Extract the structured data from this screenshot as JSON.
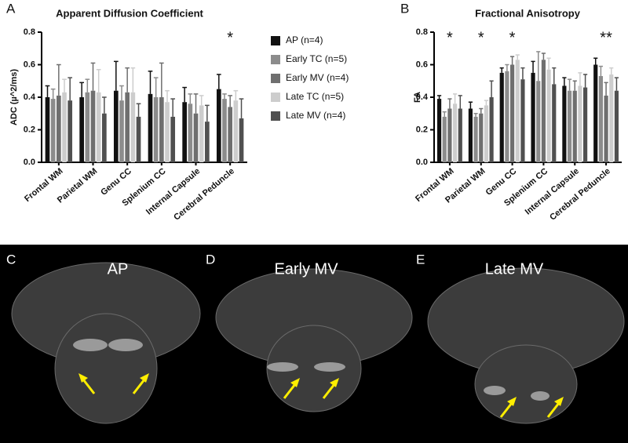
{
  "chart_data": [
    {
      "type": "bar",
      "panel": "A",
      "title": "Apparent Diffusion Coefficient",
      "ylabel": "ADC (µ^2/ms)",
      "categories": [
        "Frontal WM",
        "Parietal WM",
        "Genu CC",
        "Splenium CC",
        "Internal Capsule",
        "Cerebral Peduncle"
      ],
      "series": [
        {
          "name": "AP (n=4)",
          "color": "#111111",
          "values": [
            0.4,
            0.4,
            0.44,
            0.42,
            0.37,
            0.45
          ],
          "errors": [
            0.07,
            0.09,
            0.18,
            0.14,
            0.09,
            0.09
          ]
        },
        {
          "name": "Early TC (n=5)",
          "color": "#8c8c8c",
          "values": [
            0.39,
            0.43,
            0.38,
            0.4,
            0.36,
            0.39
          ],
          "errors": [
            0.06,
            0.08,
            0.09,
            0.12,
            0.06,
            0.03
          ]
        },
        {
          "name": "Early MV (n=4)",
          "color": "#6f6f6f",
          "values": [
            0.41,
            0.44,
            0.43,
            0.4,
            0.3,
            0.34
          ],
          "errors": [
            0.19,
            0.17,
            0.15,
            0.21,
            0.12,
            0.07
          ]
        },
        {
          "name": "Late TC (n=5)",
          "color": "#cdcdcd",
          "values": [
            0.43,
            0.43,
            0.43,
            0.37,
            0.35,
            0.38
          ],
          "errors": [
            0.08,
            0.14,
            0.15,
            0.07,
            0.06,
            0.06
          ]
        },
        {
          "name": "Late MV (n=4)",
          "color": "#505050",
          "values": [
            0.38,
            0.3,
            0.28,
            0.28,
            0.25,
            0.27
          ],
          "errors": [
            0.14,
            0.1,
            0.08,
            0.11,
            0.1,
            0.12
          ]
        }
      ],
      "significance": [
        null,
        null,
        null,
        null,
        null,
        "*"
      ],
      "ylim": [
        0,
        0.8
      ],
      "yticks": [
        {
          "value": 0,
          "label": "0.0"
        },
        0.2,
        0.4,
        0.6,
        0.8
      ],
      "legend": true
    },
    {
      "type": "bar",
      "panel": "B",
      "title": "Fractional Anisotropy",
      "ylabel": "FA",
      "categories": [
        "Frontal WM",
        "Parietal WM",
        "Genu CC",
        "Splenium CC",
        "Internal Capsule",
        "Cerebral Peduncle"
      ],
      "series": [
        {
          "name": "AP (n=4)",
          "color": "#111111",
          "values": [
            0.39,
            0.33,
            0.55,
            0.55,
            0.47,
            0.6
          ],
          "errors": [
            0.02,
            0.04,
            0.03,
            0.07,
            0.05,
            0.04
          ]
        },
        {
          "name": "Early TC (n=5)",
          "color": "#8c8c8c",
          "values": [
            0.28,
            0.28,
            0.56,
            0.5,
            0.44,
            0.53
          ],
          "errors": [
            0.03,
            0.02,
            0.04,
            0.18,
            0.07,
            0.06
          ]
        },
        {
          "name": "Early MV (n=4)",
          "color": "#6f6f6f",
          "values": [
            0.33,
            0.3,
            0.6,
            0.63,
            0.44,
            0.41
          ],
          "errors": [
            0.06,
            0.03,
            0.05,
            0.04,
            0.06,
            0.08
          ]
        },
        {
          "name": "Late TC (n=5)",
          "color": "#cdcdcd",
          "values": [
            0.36,
            0.35,
            0.63,
            0.57,
            0.47,
            0.54
          ],
          "errors": [
            0.06,
            0.03,
            0.03,
            0.07,
            0.08,
            0.04
          ]
        },
        {
          "name": "Late MV (n=4)",
          "color": "#505050",
          "values": [
            0.33,
            0.4,
            0.51,
            0.48,
            0.46,
            0.44
          ],
          "errors": [
            0.08,
            0.1,
            0.07,
            0.1,
            0.08,
            0.08
          ]
        }
      ],
      "significance": [
        "*",
        "*",
        "*",
        null,
        null,
        "**"
      ],
      "ylim": [
        0,
        0.8
      ],
      "yticks": [
        {
          "value": 0,
          "label": "0.0"
        },
        0.2,
        0.4,
        0.6,
        0.8
      ],
      "legend": false
    }
  ],
  "panels": [
    {
      "letter": "C",
      "title": "AP"
    },
    {
      "letter": "D",
      "title": "Early MV"
    },
    {
      "letter": "E",
      "title": "Late MV"
    }
  ]
}
